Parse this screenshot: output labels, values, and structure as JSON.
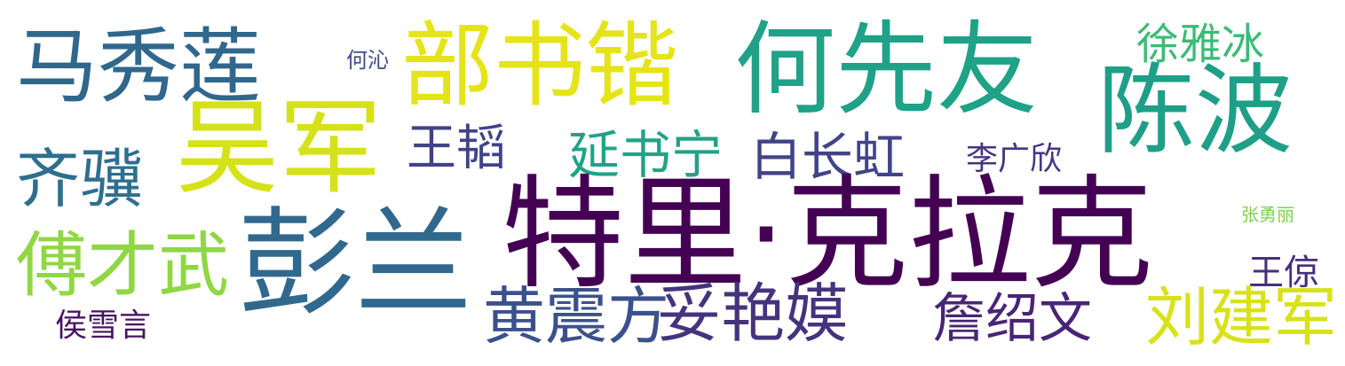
{
  "cloud": {
    "words": [
      {
        "text": "马秀莲",
        "color": "#30678d"
      },
      {
        "text": "吴军",
        "color": "#d5e21a"
      },
      {
        "text": "部书锴",
        "color": "#e5e419"
      },
      {
        "text": "何先友",
        "color": "#1fa287"
      },
      {
        "text": "陈波",
        "color": "#1f9f88"
      },
      {
        "text": "徐雅冰",
        "color": "#3bbb75"
      },
      {
        "text": "何沁",
        "color": "#3e4a89"
      },
      {
        "text": "齐骥",
        "color": "#2e6f8e"
      },
      {
        "text": "王韬",
        "color": "#404387"
      },
      {
        "text": "延书宁",
        "color": "#20a386"
      },
      {
        "text": "白长虹",
        "color": "#414487"
      },
      {
        "text": "李广欣",
        "color": "#453581"
      },
      {
        "text": "张勇丽",
        "color": "#7ad151"
      },
      {
        "text": "特里·克拉克",
        "color": "#440154"
      },
      {
        "text": "彭兰",
        "color": "#31688e"
      },
      {
        "text": "傅才武",
        "color": "#8fd744"
      },
      {
        "text": "黄震方",
        "color": "#3b518b"
      },
      {
        "text": "妥艳嫫",
        "color": "#45337d"
      },
      {
        "text": "詹绍文",
        "color": "#482576"
      },
      {
        "text": "王倞",
        "color": "#46307e"
      },
      {
        "text": "刘建军",
        "color": "#d8e219"
      },
      {
        "text": "侯雪言",
        "color": "#471365"
      }
    ]
  }
}
